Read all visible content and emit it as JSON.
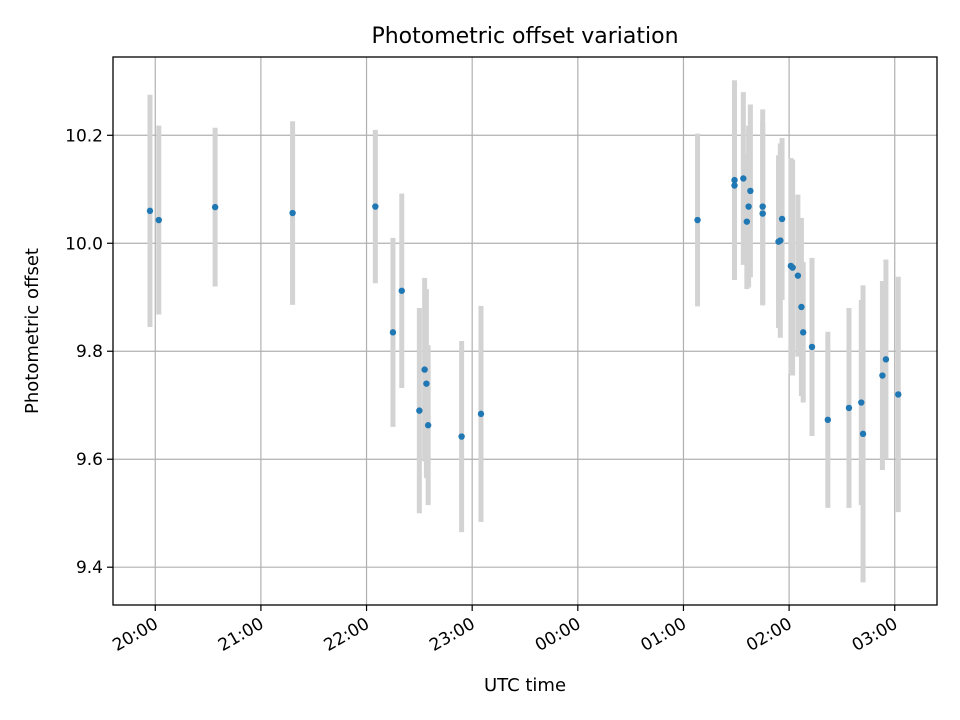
{
  "chart_data": {
    "type": "scatter",
    "title": "Photometric offset variation",
    "xlabel": "UTC time",
    "ylabel": "Photometric offset",
    "xlim": [
      "19:36",
      "03:24"
    ],
    "ylim": [
      9.33,
      10.345
    ],
    "grid": true,
    "colors": {
      "point": "#1f77b4",
      "errorbar": "#d3d3d3"
    },
    "x_ticks": [
      "20:00",
      "21:00",
      "22:00",
      "23:00",
      "00:00",
      "01:00",
      "02:00",
      "03:00"
    ],
    "y_ticks": [
      "9.4",
      "9.6",
      "9.8",
      "10.0",
      "10.2"
    ],
    "series": [
      {
        "points": [
          {
            "t": "19:57",
            "y": 10.06,
            "yerr": 0.215
          },
          {
            "t": "20:02",
            "y": 10.043,
            "yerr": 0.175
          },
          {
            "t": "20:34",
            "y": 10.067,
            "yerr": 0.147
          },
          {
            "t": "21:18",
            "y": 10.056,
            "yerr": 0.17
          },
          {
            "t": "22:05",
            "y": 10.068,
            "yerr": 0.142
          },
          {
            "t": "22:15",
            "y": 9.835,
            "yerr": 0.175
          },
          {
            "t": "22:20",
            "y": 9.912,
            "yerr": 0.18
          },
          {
            "t": "22:30",
            "y": 9.69,
            "yerr": 0.19
          },
          {
            "t": "22:33",
            "y": 9.766,
            "yerr": 0.17
          },
          {
            "t": "22:34",
            "y": 9.74,
            "yerr": 0.175
          },
          {
            "t": "22:35",
            "y": 9.663,
            "yerr": 0.148
          },
          {
            "t": "22:54",
            "y": 9.642,
            "yerr": 0.177
          },
          {
            "t": "23:05",
            "y": 9.684,
            "yerr": 0.2
          },
          {
            "t": "01:08",
            "y": 10.043,
            "yerr": 0.16
          },
          {
            "t": "01:29",
            "y": 10.117,
            "yerr": 0.185
          },
          {
            "t": "01:29",
            "y": 10.107,
            "yerr": 0.175
          },
          {
            "t": "01:34",
            "y": 10.12,
            "yerr": 0.16
          },
          {
            "t": "01:36",
            "y": 10.04,
            "yerr": 0.125
          },
          {
            "t": "01:37",
            "y": 10.068,
            "yerr": 0.15
          },
          {
            "t": "01:38",
            "y": 10.097,
            "yerr": 0.16
          },
          {
            "t": "01:45",
            "y": 10.068,
            "yerr": 0.18
          },
          {
            "t": "01:45",
            "y": 10.055,
            "yerr": 0.17
          },
          {
            "t": "01:54",
            "y": 10.003,
            "yerr": 0.16
          },
          {
            "t": "01:55",
            "y": 10.005,
            "yerr": 0.18
          },
          {
            "t": "01:56",
            "y": 10.045,
            "yerr": 0.15
          },
          {
            "t": "02:01",
            "y": 9.958,
            "yerr": 0.2
          },
          {
            "t": "02:02",
            "y": 9.955,
            "yerr": 0.2
          },
          {
            "t": "02:05",
            "y": 9.94,
            "yerr": 0.15
          },
          {
            "t": "02:07",
            "y": 9.882,
            "yerr": 0.165
          },
          {
            "t": "02:08",
            "y": 9.835,
            "yerr": 0.13
          },
          {
            "t": "02:13",
            "y": 9.808,
            "yerr": 0.165
          },
          {
            "t": "02:22",
            "y": 9.673,
            "yerr": 0.163
          },
          {
            "t": "02:34",
            "y": 9.695,
            "yerr": 0.185
          },
          {
            "t": "02:41",
            "y": 9.705,
            "yerr": 0.19
          },
          {
            "t": "02:42",
            "y": 9.647,
            "yerr": 0.275
          },
          {
            "t": "02:53",
            "y": 9.755,
            "yerr": 0.175
          },
          {
            "t": "02:55",
            "y": 9.785,
            "yerr": 0.185
          },
          {
            "t": "03:02",
            "y": 9.72,
            "yerr": 0.218
          }
        ]
      }
    ]
  }
}
